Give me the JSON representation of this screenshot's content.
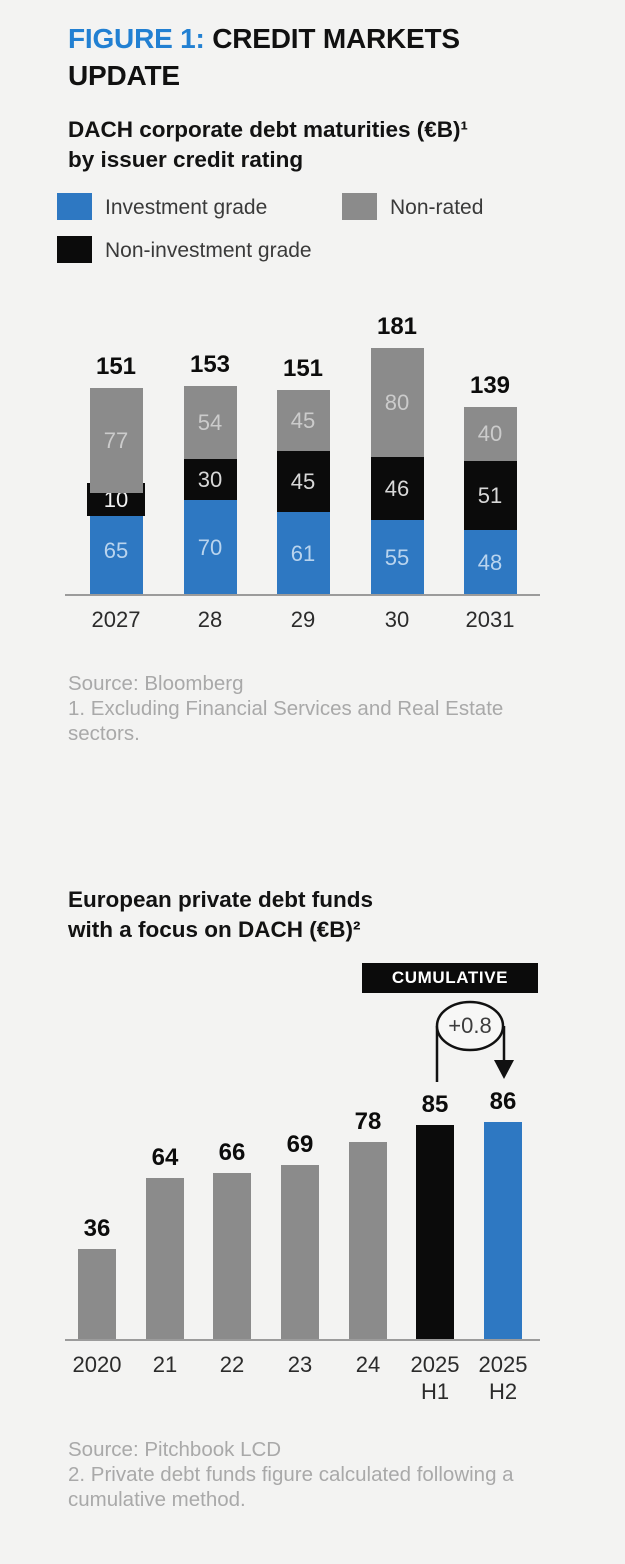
{
  "header": {
    "figure_label": "FIGURE 1:",
    "figure_title": "CREDIT MARKETS UPDATE"
  },
  "colors": {
    "background": "#f3f3f2",
    "accent_blue": "#2e78c2",
    "title_blue": "#2280d2",
    "bar_gray": "#8b8b8b",
    "bar_black": "#0b0b0b",
    "source_text": "#a9a9a9",
    "seg_label_on_blue": "#b9d4ee",
    "seg_label_on_black": "#d8d8d8",
    "seg_label_on_gray": "#cbcbcb"
  },
  "legend": {
    "items": [
      {
        "label": "Investment grade",
        "color": "#2e78c2"
      },
      {
        "label": "Non-rated",
        "color": "#8b8b8b"
      },
      {
        "label": "Non-investment grade",
        "color": "#0b0b0b"
      }
    ]
  },
  "chart_data": [
    {
      "type": "bar",
      "stacked": true,
      "title_lines": [
        "DACH corporate debt maturities (€B)¹",
        "by issuer credit rating"
      ],
      "categories": [
        "2027",
        "28",
        "29",
        "30",
        "2031"
      ],
      "series": [
        {
          "name": "Investment grade",
          "color": "#2e78c2",
          "label_color": "#b9d4ee",
          "values": [
            65,
            70,
            61,
            55,
            48
          ]
        },
        {
          "name": "Non-investment grade",
          "color": "#0b0b0b",
          "label_color": "#d8d8d8",
          "values": [
            10,
            30,
            45,
            46,
            51
          ]
        },
        {
          "name": "Non-rated",
          "color": "#8b8b8b",
          "label_color": "#cbcbcb",
          "values": [
            77,
            54,
            45,
            80,
            40
          ]
        }
      ],
      "totals": [
        151,
        153,
        151,
        181,
        139
      ],
      "legend_position": "top",
      "grid": false,
      "source_lines": [
        "Source: Bloomberg",
        "1. Excluding Financial Services and Real Estate sectors."
      ]
    },
    {
      "type": "bar",
      "stacked": false,
      "title_lines": [
        "European private debt funds",
        "with a focus on DACH (€B)²"
      ],
      "categories": [
        [
          "2020"
        ],
        [
          "21"
        ],
        [
          "22"
        ],
        [
          "23"
        ],
        [
          "24"
        ],
        [
          "2025",
          "H1"
        ],
        [
          "2025",
          "H2"
        ]
      ],
      "values": [
        36,
        64,
        66,
        69,
        78,
        85,
        86
      ],
      "bar_colors": [
        "gray",
        "gray",
        "gray",
        "gray",
        "gray",
        "black",
        "blue"
      ],
      "grid": false,
      "annotation": {
        "badge": "CUMULATIVE",
        "delta": "+0.8"
      },
      "source_lines": [
        "Source: Pitchbook LCD",
        "2. Private debt funds figure calculated following a cumulative method."
      ]
    }
  ]
}
